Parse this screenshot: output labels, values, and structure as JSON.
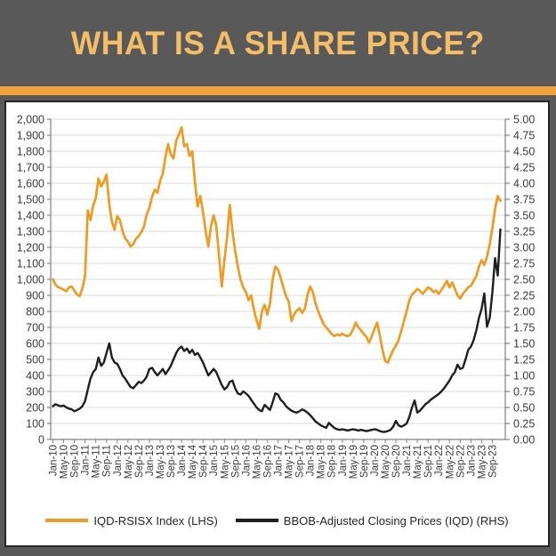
{
  "header": {
    "title": "WHAT IS A SHARE PRICE?"
  },
  "colors": {
    "background": "#595959",
    "title": "#F4BE68",
    "divider": "#F2A43C",
    "orange_series": "#EE9B22",
    "black_series": "#1F1F1F",
    "gridline": "#D9D9D9",
    "axis": "#808080"
  },
  "chart_data": {
    "type": "line",
    "grid": "horizontal",
    "legend_position": "bottom",
    "left_axis": {
      "min": 0,
      "max": 2000,
      "step": 100,
      "tick_labels": [
        "2,000",
        "1,900",
        "1,800",
        "1,700",
        "1,600",
        "1,500",
        "1,400",
        "1,300",
        "1,200",
        "1,100",
        "1,000",
        "900",
        "800",
        "700",
        "600",
        "500",
        "400",
        "300",
        "200",
        "100",
        "0"
      ]
    },
    "right_axis": {
      "min": 0,
      "max": 5,
      "step": 0.25,
      "tick_labels": [
        "5.00",
        "4.75",
        "4.50",
        "4.25",
        "4.00",
        "3.75",
        "3.50",
        "3.25",
        "3.00",
        "2.75",
        "2.50",
        "2.25",
        "2.00",
        "1.75",
        "1.50",
        "1.25",
        "1.00",
        "0.75",
        "0.50",
        "0.25",
        "0.00"
      ]
    },
    "x_tick_every_n_points": 4,
    "x_tick_labels": [
      "Jan-10",
      "May-10",
      "Sep-10",
      "Jan-11",
      "May-11",
      "Sep-11",
      "Jan-12",
      "May-12",
      "Sep-12",
      "Jan-13",
      "May-13",
      "Sep-13",
      "Jan-14",
      "May-14",
      "Sep-14",
      "Jan-15",
      "May-15",
      "Sep-15",
      "Jan-16",
      "May-16",
      "Sep-16",
      "Jan-17",
      "May-17",
      "Sep-17",
      "Jan-18",
      "May-18",
      "Sep-18",
      "Jan-19",
      "May-19",
      "Sep-19",
      "Jan-20",
      "May-20",
      "Sep-20",
      "Jan-21",
      "May-21",
      "Sep-21",
      "Jan-22",
      "May-22",
      "Sep-22",
      "Jan-23",
      "May-23",
      "Sep-23"
    ],
    "series": [
      {
        "name": "IQD-RSISX Index (LHS)",
        "axis": "left",
        "color": "#EE9B22",
        "values": [
          1000,
          965,
          950,
          945,
          935,
          925,
          950,
          955,
          930,
          905,
          895,
          945,
          1020,
          1430,
          1370,
          1460,
          1510,
          1630,
          1580,
          1610,
          1655,
          1470,
          1360,
          1310,
          1395,
          1370,
          1300,
          1255,
          1235,
          1205,
          1220,
          1255,
          1270,
          1295,
          1330,
          1405,
          1445,
          1515,
          1560,
          1540,
          1615,
          1660,
          1765,
          1845,
          1780,
          1755,
          1865,
          1905,
          1950,
          1830,
          1845,
          1770,
          1800,
          1610,
          1455,
          1520,
          1420,
          1300,
          1205,
          1335,
          1400,
          1330,
          1150,
          955,
          1120,
          1265,
          1465,
          1300,
          1180,
          1080,
          1000,
          950,
          920,
          870,
          900,
          810,
          745,
          690,
          800,
          840,
          780,
          850,
          1000,
          1080,
          1060,
          1010,
          950,
          895,
          860,
          740,
          780,
          805,
          820,
          790,
          815,
          900,
          955,
          920,
          850,
          800,
          760,
          720,
          700,
          680,
          660,
          645,
          655,
          650,
          660,
          650,
          645,
          655,
          685,
          730,
          700,
          680,
          660,
          640,
          605,
          645,
          690,
          730,
          650,
          560,
          490,
          480,
          520,
          560,
          585,
          620,
          680,
          740,
          800,
          870,
          905,
          920,
          940,
          930,
          910,
          930,
          950,
          940,
          920,
          930,
          910,
          935,
          960,
          990,
          950,
          980,
          940,
          900,
          880,
          910,
          930,
          950,
          960,
          990,
          1020,
          1080,
          1120,
          1090,
          1140,
          1220,
          1320,
          1440,
          1520,
          1490
        ]
      },
      {
        "name": "BBOB-Adjusted Closing Prices (IQD) (RHS)",
        "axis": "right",
        "color": "#1F1F1F",
        "values": [
          0.52,
          0.55,
          0.53,
          0.52,
          0.53,
          0.5,
          0.48,
          0.47,
          0.44,
          0.46,
          0.48,
          0.52,
          0.6,
          0.78,
          0.95,
          1.05,
          1.1,
          1.28,
          1.15,
          1.2,
          1.35,
          1.5,
          1.28,
          1.2,
          1.18,
          1.1,
          1.0,
          0.95,
          0.88,
          0.82,
          0.8,
          0.85,
          0.9,
          0.88,
          0.92,
          0.98,
          1.1,
          1.12,
          1.05,
          1.0,
          1.05,
          1.1,
          1.02,
          1.08,
          1.15,
          1.25,
          1.35,
          1.42,
          1.45,
          1.38,
          1.42,
          1.35,
          1.4,
          1.32,
          1.35,
          1.28,
          1.2,
          1.1,
          1.0,
          1.05,
          1.1,
          1.05,
          0.95,
          0.85,
          0.78,
          0.82,
          0.9,
          0.92,
          0.8,
          0.72,
          0.7,
          0.75,
          0.72,
          0.68,
          0.62,
          0.56,
          0.5,
          0.46,
          0.44,
          0.54,
          0.5,
          0.46,
          0.58,
          0.72,
          0.7,
          0.62,
          0.58,
          0.52,
          0.48,
          0.45,
          0.43,
          0.42,
          0.44,
          0.47,
          0.45,
          0.42,
          0.38,
          0.33,
          0.28,
          0.25,
          0.22,
          0.2,
          0.18,
          0.26,
          0.22,
          0.18,
          0.16,
          0.15,
          0.16,
          0.15,
          0.14,
          0.15,
          0.16,
          0.15,
          0.14,
          0.15,
          0.14,
          0.13,
          0.14,
          0.15,
          0.16,
          0.15,
          0.13,
          0.12,
          0.12,
          0.13,
          0.15,
          0.2,
          0.29,
          0.22,
          0.2,
          0.22,
          0.25,
          0.35,
          0.5,
          0.61,
          0.42,
          0.45,
          0.5,
          0.55,
          0.58,
          0.62,
          0.65,
          0.68,
          0.71,
          0.75,
          0.8,
          0.86,
          0.92,
          1.0,
          1.05,
          1.17,
          1.1,
          1.12,
          1.25,
          1.4,
          1.45,
          1.55,
          1.7,
          1.9,
          2.04,
          2.28,
          1.76,
          1.9,
          2.3,
          2.83,
          2.56,
          3.28
        ]
      }
    ],
    "legend": [
      "IQD-RSISX Index (LHS)",
      "BBOB-Adjusted Closing Prices (IQD) (RHS)"
    ]
  }
}
